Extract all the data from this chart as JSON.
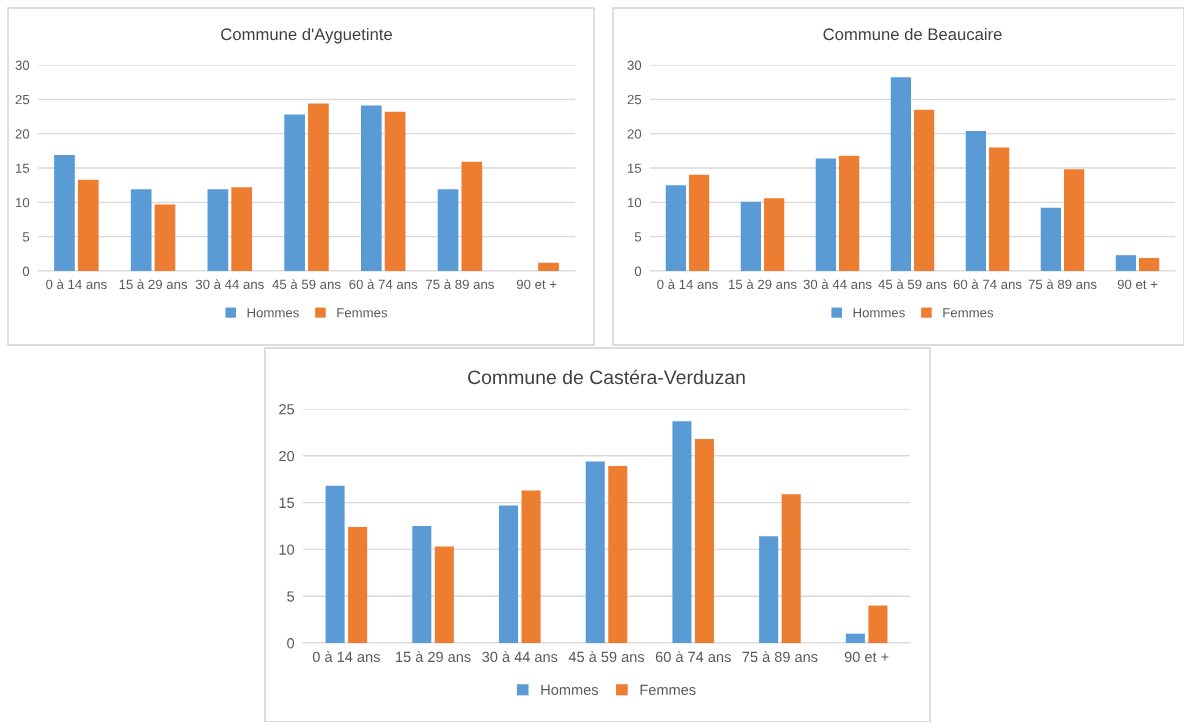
{
  "chart_data": [
    {
      "type": "bar",
      "title": "Commune d'Ayguetinte",
      "categories": [
        "0 à 14 ans",
        "15 à 29 ans",
        "30 à 44 ans",
        "45 à 59 ans",
        "60 à 74 ans",
        "75 à 89 ans",
        "90 et +"
      ],
      "series": [
        {
          "name": "Hommes",
          "color": "#5b9bd5",
          "values": [
            16.9,
            11.9,
            11.9,
            22.8,
            24.1,
            11.9,
            0
          ]
        },
        {
          "name": "Femmes",
          "color": "#ed7d31",
          "values": [
            13.3,
            9.7,
            12.2,
            24.4,
            23.2,
            15.9,
            1.2
          ]
        }
      ],
      "ylim": [
        0,
        30
      ],
      "yticks": [
        0,
        5,
        10,
        15,
        20,
        25,
        30
      ],
      "grid": "y",
      "legend": "bottom"
    },
    {
      "type": "bar",
      "title": "Commune de Beaucaire",
      "categories": [
        "0 à 14 ans",
        "15 à 29 ans",
        "30 à 44 ans",
        "45 à 59 ans",
        "60 à 74 ans",
        "75 à 89 ans",
        "90 et +"
      ],
      "series": [
        {
          "name": "Hommes",
          "color": "#5b9bd5",
          "values": [
            12.5,
            10.1,
            16.4,
            28.2,
            20.4,
            9.2,
            2.3
          ]
        },
        {
          "name": "Femmes",
          "color": "#ed7d31",
          "values": [
            14.0,
            10.6,
            16.8,
            23.5,
            18.0,
            14.8,
            1.9
          ]
        }
      ],
      "ylim": [
        0,
        30
      ],
      "yticks": [
        0,
        5,
        10,
        15,
        20,
        25,
        30
      ],
      "grid": "y",
      "legend": "bottom"
    },
    {
      "type": "bar",
      "title": "Commune de Castéra-Verduzan",
      "categories": [
        "0 à 14 ans",
        "15 à 29 ans",
        "30 à 44 ans",
        "45 à 59 ans",
        "60 à 74 ans",
        "75 à 89 ans",
        "90 et +"
      ],
      "series": [
        {
          "name": "Hommes",
          "color": "#5b9bd5",
          "values": [
            16.8,
            12.5,
            14.7,
            19.4,
            23.7,
            11.4,
            1.0
          ]
        },
        {
          "name": "Femmes",
          "color": "#ed7d31",
          "values": [
            12.4,
            10.3,
            16.3,
            18.9,
            21.8,
            15.9,
            4.0
          ]
        }
      ],
      "ylim": [
        0,
        25
      ],
      "yticks": [
        0,
        5,
        10,
        15,
        20,
        25
      ],
      "grid": "y",
      "legend": "bottom"
    }
  ]
}
